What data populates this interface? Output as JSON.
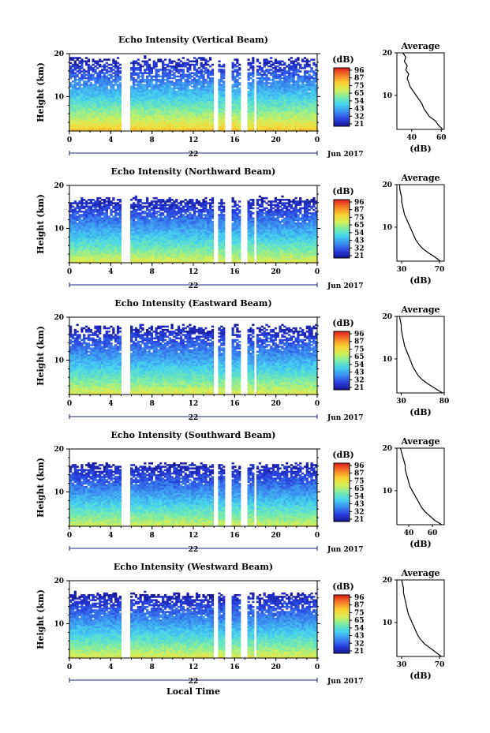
{
  "footer": {
    "xlabel": "Local Time"
  },
  "chart_data": [
    {
      "type": "heatmap",
      "title": "Echo Intensity (Vertical Beam)",
      "ylabel": "Height (km)",
      "ylim": [
        2,
        20
      ],
      "yticks": [
        10,
        20
      ],
      "xlim": [
        0,
        24
      ],
      "xticks": [
        "0",
        "4",
        "8",
        "12",
        "16",
        "20",
        "0"
      ],
      "date_labels": {
        "day": "22",
        "month_year": "Jun 2017"
      },
      "colorbar": {
        "unit": "(dB)",
        "ticks": [
          "96",
          "87",
          "75",
          "65",
          "54",
          "43",
          "32",
          "21"
        ],
        "min": 21,
        "max": 96
      },
      "gaps": [
        [
          5.1,
          5.8
        ],
        [
          14.0,
          14.5
        ],
        [
          15.0,
          15.8
        ],
        [
          16.6,
          17.2
        ],
        [
          17.8,
          18.2
        ]
      ],
      "echo_top_km": 19.5,
      "surface_db": 80,
      "average_profile": {
        "title": "Average",
        "xlabel": "(dB)",
        "xticks": [
          "40",
          "60"
        ],
        "xlim": [
          30,
          62
        ],
        "yticks": [
          10,
          20
        ],
        "height_km": [
          2,
          3,
          4,
          5,
          6,
          7,
          8,
          9,
          10,
          11,
          12,
          13,
          14,
          15,
          16,
          17,
          18,
          19,
          20
        ],
        "values_db": [
          61,
          58,
          56,
          52,
          50,
          48,
          47,
          45,
          43,
          41,
          39,
          38,
          37,
          38,
          36,
          37,
          35,
          36,
          34
        ]
      }
    },
    {
      "type": "heatmap",
      "title": "Echo Intensity (Northward Beam)",
      "ylabel": "Height (km)",
      "ylim": [
        2,
        20
      ],
      "yticks": [
        10,
        20
      ],
      "xlim": [
        0,
        24
      ],
      "xticks": [
        "0",
        "4",
        "8",
        "12",
        "16",
        "20",
        "0"
      ],
      "date_labels": {
        "day": "22",
        "month_year": "Jun 2017"
      },
      "colorbar": {
        "unit": "(dB)",
        "ticks": [
          "96",
          "87",
          "75",
          "65",
          "54",
          "43",
          "32",
          "21"
        ],
        "min": 21,
        "max": 96
      },
      "gaps": [
        [
          5.1,
          5.8
        ],
        [
          14.0,
          14.5
        ],
        [
          15.0,
          15.8
        ],
        [
          16.6,
          17.2
        ],
        [
          17.8,
          18.2
        ]
      ],
      "echo_top_km": 17.5,
      "surface_db": 72,
      "average_profile": {
        "title": "Average",
        "xlabel": "(dB)",
        "xticks": [
          "30",
          "70"
        ],
        "xlim": [
          25,
          75
        ],
        "yticks": [
          10,
          20
        ],
        "height_km": [
          2,
          3,
          4,
          5,
          6,
          7,
          8,
          9,
          10,
          11,
          12,
          13,
          14,
          15,
          16,
          17,
          18,
          19,
          20
        ],
        "values_db": [
          71,
          65,
          58,
          52,
          48,
          45,
          43,
          41,
          39,
          37,
          35,
          33,
          32,
          31,
          30,
          30,
          29,
          28,
          28
        ]
      }
    },
    {
      "type": "heatmap",
      "title": "Echo Intensity (Eastward Beam)",
      "ylabel": "Height (km)",
      "ylim": [
        2,
        20
      ],
      "yticks": [
        10,
        20
      ],
      "xlim": [
        0,
        24
      ],
      "xticks": [
        "0",
        "4",
        "8",
        "12",
        "16",
        "20",
        "0"
      ],
      "date_labels": {
        "day": "22",
        "month_year": "Jun 2017"
      },
      "colorbar": {
        "unit": "(dB)",
        "ticks": [
          "96",
          "87",
          "75",
          "65",
          "54",
          "43",
          "32",
          "21"
        ],
        "min": 21,
        "max": 96
      },
      "gaps": [
        [
          5.1,
          5.8
        ],
        [
          14.0,
          14.5
        ],
        [
          15.0,
          15.8
        ],
        [
          16.6,
          17.2
        ],
        [
          17.8,
          18.2
        ]
      ],
      "echo_top_km": 18.5,
      "surface_db": 72,
      "average_profile": {
        "title": "Average",
        "xlabel": "(dB)",
        "xticks": [
          "30",
          "80"
        ],
        "xlim": [
          25,
          80
        ],
        "yticks": [
          10,
          20
        ],
        "height_km": [
          2,
          3,
          4,
          5,
          6,
          7,
          8,
          9,
          10,
          11,
          12,
          13,
          14,
          15,
          16,
          17,
          18,
          19,
          20
        ],
        "values_db": [
          78,
          70,
          62,
          55,
          50,
          47,
          44,
          42,
          40,
          38,
          36,
          34,
          33,
          32,
          31,
          30,
          30,
          29,
          28
        ]
      }
    },
    {
      "type": "heatmap",
      "title": "Echo Intensity (Southward Beam)",
      "ylabel": "Height (km)",
      "ylim": [
        2,
        20
      ],
      "yticks": [
        10,
        20
      ],
      "xlim": [
        0,
        24
      ],
      "xticks": [
        "0",
        "4",
        "8",
        "12",
        "16",
        "20",
        "0"
      ],
      "date_labels": {
        "day": "22",
        "month_year": "Jun 2017"
      },
      "colorbar": {
        "unit": "(dB)",
        "ticks": [
          "96",
          "87",
          "75",
          "65",
          "54",
          "43",
          "32",
          "21"
        ],
        "min": 21,
        "max": 96
      },
      "gaps": [
        [
          5.1,
          5.8
        ],
        [
          14.0,
          14.5
        ],
        [
          15.0,
          15.8
        ],
        [
          16.6,
          17.2
        ],
        [
          17.8,
          18.2
        ]
      ],
      "echo_top_km": 17.0,
      "surface_db": 70,
      "average_profile": {
        "title": "Average",
        "xlabel": "(dB)",
        "xticks": [
          "40",
          "60"
        ],
        "xlim": [
          30,
          70
        ],
        "yticks": [
          10,
          20
        ],
        "height_km": [
          2,
          3,
          4,
          5,
          6,
          7,
          8,
          9,
          10,
          11,
          12,
          13,
          14,
          15,
          16,
          17,
          18,
          19,
          20
        ],
        "values_db": [
          68,
          62,
          58,
          54,
          51,
          49,
          47,
          45,
          43,
          41,
          40,
          39,
          38,
          37,
          37,
          36,
          35,
          34,
          33
        ]
      }
    },
    {
      "type": "heatmap",
      "title": "Echo Intensity (Westward Beam)",
      "ylabel": "Height (km)",
      "ylim": [
        2,
        20
      ],
      "yticks": [
        10,
        20
      ],
      "xlim": [
        0,
        24
      ],
      "xticks": [
        "0",
        "4",
        "8",
        "12",
        "16",
        "20",
        "0"
      ],
      "date_labels": {
        "day": "22",
        "month_year": "Jun 2017"
      },
      "colorbar": {
        "unit": "(dB)",
        "ticks": [
          "96",
          "87",
          "75",
          "65",
          "54",
          "43",
          "32",
          "21"
        ],
        "min": 21,
        "max": 96
      },
      "gaps": [
        [
          5.1,
          5.8
        ],
        [
          14.0,
          14.5
        ],
        [
          15.0,
          15.8
        ],
        [
          16.6,
          17.2
        ],
        [
          17.8,
          18.2
        ]
      ],
      "echo_top_km": 17.5,
      "surface_db": 72,
      "average_profile": {
        "title": "Average",
        "xlabel": "(dB)",
        "xticks": [
          "30",
          "70"
        ],
        "xlim": [
          25,
          75
        ],
        "yticks": [
          10,
          20
        ],
        "height_km": [
          2,
          3,
          4,
          5,
          6,
          7,
          8,
          9,
          10,
          11,
          12,
          13,
          14,
          15,
          16,
          17,
          18,
          19,
          20
        ],
        "values_db": [
          72,
          66,
          60,
          54,
          50,
          47,
          45,
          43,
          41,
          39,
          37,
          36,
          35,
          34,
          33,
          32,
          32,
          31,
          30
        ]
      }
    }
  ]
}
